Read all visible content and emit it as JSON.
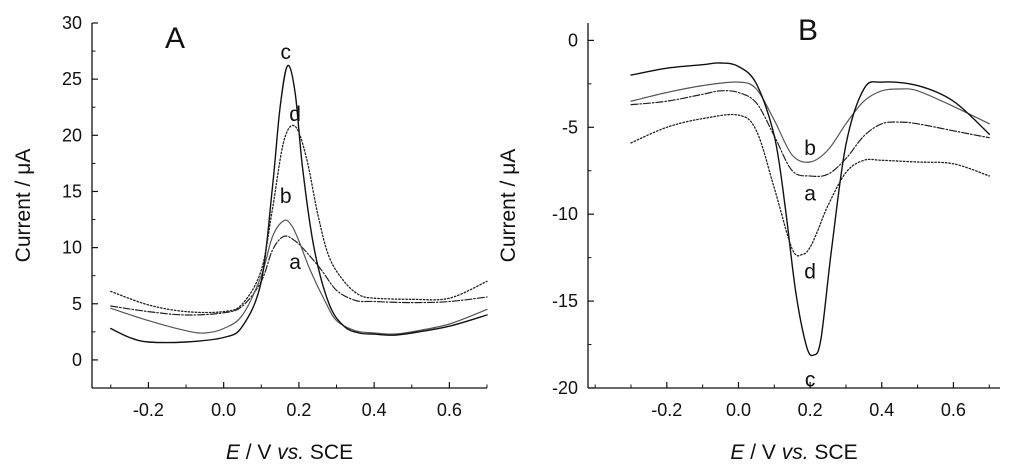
{
  "chart_data": [
    {
      "type": "line",
      "panel_label": "A",
      "xlabel_italic": "E",
      "xlabel_mid": " / V ",
      "xlabel_vs": "vs.",
      "xlabel_tail": " SCE",
      "ylabel": "Current / μA",
      "xlim": [
        -0.35,
        0.7
      ],
      "ylim": [
        -2.5,
        30
      ],
      "xticks": [
        "-0.2",
        "0.0",
        "0.2",
        "0.4",
        "0.6"
      ],
      "xtick_values": [
        -0.2,
        0.0,
        0.2,
        0.4,
        0.6
      ],
      "yticks": [
        "0",
        "5",
        "10",
        "15",
        "20",
        "25",
        "30"
      ],
      "ytick_values": [
        0,
        5,
        10,
        15,
        20,
        25,
        30
      ],
      "grid": false,
      "series": [
        {
          "name": "a",
          "style": "dashdot",
          "x": [
            -0.3,
            -0.2,
            -0.1,
            0.0,
            0.05,
            0.1,
            0.13,
            0.16,
            0.19,
            0.22,
            0.26,
            0.3,
            0.35,
            0.4,
            0.5,
            0.6,
            0.7
          ],
          "y": [
            4.8,
            4.3,
            4.0,
            4.2,
            4.8,
            7.0,
            9.8,
            11.0,
            10.6,
            9.6,
            8.0,
            6.2,
            5.3,
            5.2,
            5.1,
            5.2,
            5.6
          ]
        },
        {
          "name": "b",
          "style": "solid-light",
          "x": [
            -0.3,
            -0.2,
            -0.1,
            -0.05,
            0.0,
            0.05,
            0.1,
            0.13,
            0.16,
            0.18,
            0.2,
            0.23,
            0.27,
            0.3,
            0.35,
            0.4,
            0.45,
            0.5,
            0.6,
            0.7
          ],
          "y": [
            4.6,
            3.5,
            2.6,
            2.4,
            2.8,
            4.0,
            7.5,
            11.0,
            12.4,
            12.0,
            10.6,
            8.0,
            5.2,
            3.5,
            2.6,
            2.4,
            2.3,
            2.5,
            3.2,
            4.5
          ]
        },
        {
          "name": "c",
          "style": "solid-dark",
          "x": [
            -0.3,
            -0.25,
            -0.2,
            -0.1,
            0.0,
            0.05,
            0.1,
            0.13,
            0.15,
            0.17,
            0.19,
            0.21,
            0.24,
            0.28,
            0.32,
            0.36,
            0.4,
            0.45,
            0.5,
            0.6,
            0.7
          ],
          "y": [
            2.8,
            2.0,
            1.6,
            1.6,
            2.0,
            3.0,
            7.0,
            15.5,
            22.5,
            26.2,
            23.8,
            17.0,
            10.0,
            5.0,
            3.0,
            2.4,
            2.3,
            2.2,
            2.4,
            3.0,
            4.0
          ]
        },
        {
          "name": "d",
          "style": "dotted",
          "x": [
            -0.3,
            -0.2,
            -0.1,
            0.0,
            0.05,
            0.1,
            0.13,
            0.16,
            0.19,
            0.22,
            0.25,
            0.28,
            0.32,
            0.36,
            0.4,
            0.5,
            0.6,
            0.7
          ],
          "y": [
            6.1,
            4.9,
            4.3,
            4.3,
            5.0,
            8.0,
            13.5,
            19.5,
            20.8,
            18.0,
            13.0,
            9.2,
            7.0,
            5.8,
            5.5,
            5.4,
            5.5,
            7.0
          ]
        }
      ],
      "curve_labels": [
        {
          "text": "c",
          "x": 0.165,
          "y": 27.4
        },
        {
          "text": "d",
          "x": 0.19,
          "y": 21.9
        },
        {
          "text": "b",
          "x": 0.165,
          "y": 14.6
        },
        {
          "text": "a",
          "x": 0.19,
          "y": 8.7
        }
      ]
    },
    {
      "type": "line",
      "panel_label": "B",
      "xlabel_italic": "E",
      "xlabel_mid": " / V ",
      "xlabel_vs": "vs.",
      "xlabel_tail": " SCE",
      "ylabel": "Current / μA",
      "xlim": [
        -0.42,
        0.73
      ],
      "ylim": [
        -20,
        1
      ],
      "xticks": [
        "-0.2",
        "0.0",
        "0.2",
        "0.4",
        "0.6"
      ],
      "xtick_values": [
        -0.2,
        0.0,
        0.2,
        0.4,
        0.6
      ],
      "yticks": [
        "0",
        "-5",
        "-10",
        "-15",
        "-20"
      ],
      "ytick_values": [
        0,
        -5,
        -10,
        -15,
        -20
      ],
      "grid": false,
      "series": [
        {
          "name": "a",
          "style": "dashdot",
          "x": [
            -0.3,
            -0.2,
            -0.1,
            -0.05,
            0.0,
            0.05,
            0.1,
            0.15,
            0.2,
            0.25,
            0.3,
            0.35,
            0.4,
            0.45,
            0.5,
            0.6,
            0.7
          ],
          "y": [
            -3.7,
            -3.5,
            -3.1,
            -2.9,
            -3.0,
            -3.6,
            -5.5,
            -7.5,
            -7.8,
            -7.7,
            -6.8,
            -5.5,
            -4.8,
            -4.7,
            -4.8,
            -5.2,
            -5.6
          ]
        },
        {
          "name": "b",
          "style": "solid-light",
          "x": [
            -0.3,
            -0.2,
            -0.1,
            0.0,
            0.05,
            0.1,
            0.15,
            0.2,
            0.25,
            0.3,
            0.35,
            0.4,
            0.45,
            0.5,
            0.6,
            0.7
          ],
          "y": [
            -3.5,
            -3.0,
            -2.6,
            -2.4,
            -2.8,
            -4.6,
            -6.6,
            -7.0,
            -6.3,
            -4.8,
            -3.5,
            -2.9,
            -2.8,
            -2.9,
            -3.8,
            -4.8
          ]
        },
        {
          "name": "c",
          "style": "solid-dark",
          "x": [
            -0.3,
            -0.2,
            -0.1,
            -0.05,
            0.0,
            0.05,
            0.1,
            0.13,
            0.16,
            0.19,
            0.21,
            0.23,
            0.26,
            0.3,
            0.35,
            0.4,
            0.5,
            0.6,
            0.7
          ],
          "y": [
            -2.0,
            -1.6,
            -1.4,
            -1.3,
            -1.5,
            -2.5,
            -5.5,
            -9.5,
            -14.5,
            -17.6,
            -18.1,
            -17.2,
            -12.0,
            -6.0,
            -2.8,
            -2.4,
            -2.6,
            -3.5,
            -5.4
          ]
        },
        {
          "name": "d",
          "style": "dotted",
          "x": [
            -0.3,
            -0.2,
            -0.1,
            0.0,
            0.05,
            0.1,
            0.15,
            0.18,
            0.2,
            0.22,
            0.25,
            0.3,
            0.35,
            0.4,
            0.5,
            0.6,
            0.7
          ],
          "y": [
            -5.9,
            -5.0,
            -4.5,
            -4.3,
            -5.2,
            -8.5,
            -12.0,
            -12.3,
            -11.9,
            -11.0,
            -9.5,
            -7.6,
            -6.9,
            -6.9,
            -7.0,
            -7.1,
            -7.8
          ]
        }
      ],
      "curve_labels": [
        {
          "text": "b",
          "x": 0.2,
          "y": -6.2
        },
        {
          "text": "a",
          "x": 0.2,
          "y": -8.8
        },
        {
          "text": "d",
          "x": 0.2,
          "y": -13.3
        },
        {
          "text": "c",
          "x": 0.2,
          "y": -19.5
        }
      ]
    }
  ]
}
